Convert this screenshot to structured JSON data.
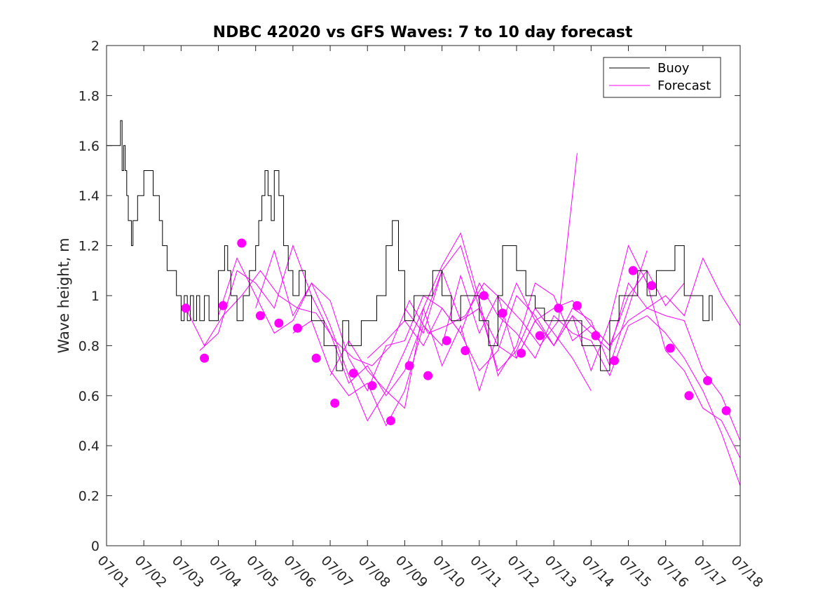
{
  "chart_data": {
    "type": "line",
    "title": "NDBC 42020 vs GFS Waves: 7 to 10 day forecast",
    "ylabel": "Wave height, m",
    "xlabel": "",
    "xlim": [
      "2017-07-01",
      "2017-07-18"
    ],
    "ylim": [
      0,
      2
    ],
    "yticks": [
      "0",
      "0.2",
      "0.4",
      "0.6",
      "0.8",
      "1",
      "1.2",
      "1.4",
      "1.6",
      "1.8",
      "2"
    ],
    "xticks": [
      "07/01",
      "07/02",
      "07/03",
      "07/04",
      "07/05",
      "07/06",
      "07/07",
      "07/08",
      "07/09",
      "07/10",
      "07/11",
      "07/12",
      "07/13",
      "07/14",
      "07/15",
      "07/16",
      "07/17",
      "07/18"
    ],
    "grid": false,
    "legend": {
      "position": "top-right",
      "entries": [
        "Buoy",
        "Forecast"
      ]
    },
    "colors": {
      "buoy": "#000000",
      "forecast": "#ff00ff"
    },
    "buoy": {
      "name": "Buoy",
      "x": [
        "07/01 00:00",
        "07/01 09:00",
        "07/01 10:00",
        "07/01 11:00",
        "07/01 12:00",
        "07/01 13:00",
        "07/01 14:00",
        "07/01 15:00",
        "07/01 16:00",
        "07/01 17:00",
        "07/01 18:00",
        "07/01 20:00",
        "07/01 21:00",
        "07/02 00:00",
        "07/02 06:00",
        "07/02 10:00",
        "07/02 12:00",
        "07/02 15:00",
        "07/02 18:00",
        "07/02 21:00",
        "07/03 00:00",
        "07/03 02:00",
        "07/03 04:00",
        "07/03 06:00",
        "07/03 08:00",
        "07/03 10:00",
        "07/03 12:00",
        "07/03 15:00",
        "07/03 18:00",
        "07/04 00:00",
        "07/04 04:00",
        "07/04 06:00",
        "07/04 08:00",
        "07/04 12:00",
        "07/04 16:00",
        "07/04 20:00",
        "07/05 00:00",
        "07/05 02:00",
        "07/05 04:00",
        "07/05 06:00",
        "07/05 08:00",
        "07/05 10:00",
        "07/05 12:00",
        "07/05 15:00",
        "07/05 18:00",
        "07/05 21:00",
        "07/06 00:00",
        "07/06 04:00",
        "07/06 08:00",
        "07/06 12:00",
        "07/06 16:00",
        "07/06 20:00",
        "07/07 00:00",
        "07/07 04:00",
        "07/07 08:00",
        "07/07 12:00",
        "07/07 16:00",
        "07/07 20:00",
        "07/08 00:00",
        "07/08 06:00",
        "07/08 12:00",
        "07/08 16:00",
        "07/08 20:00",
        "07/09 00:00",
        "07/09 06:00",
        "07/09 12:00",
        "07/09 18:00",
        "07/10 00:00",
        "07/10 06:00",
        "07/10 12:00",
        "07/10 18:00",
        "07/11 00:00",
        "07/11 06:00",
        "07/11 12:00",
        "07/11 15:00",
        "07/11 18:00",
        "07/12 00:00",
        "07/12 06:00",
        "07/12 12:00",
        "07/12 18:00",
        "07/13 00:00",
        "07/13 06:00",
        "07/13 12:00",
        "07/13 18:00",
        "07/14 00:00",
        "07/14 06:00",
        "07/14 12:00",
        "07/14 18:00",
        "07/15 00:00",
        "07/15 06:00",
        "07/15 12:00",
        "07/15 18:00",
        "07/16 00:00",
        "07/16 06:00",
        "07/16 12:00",
        "07/16 18:00",
        "07/17 00:00",
        "07/17 04:00",
        "07/17 06:00"
      ],
      "y": [
        1.6,
        1.7,
        1.5,
        1.6,
        1.5,
        1.4,
        1.3,
        1.3,
        1.2,
        1.3,
        1.3,
        1.4,
        1.4,
        1.5,
        1.4,
        1.3,
        1.2,
        1.1,
        1.1,
        1.0,
        0.9,
        1.0,
        0.9,
        1.0,
        0.9,
        1.0,
        0.9,
        1.0,
        0.9,
        1.1,
        1.2,
        1.1,
        1.0,
        0.9,
        1.0,
        1.1,
        1.2,
        1.3,
        1.4,
        1.5,
        1.4,
        1.3,
        1.5,
        1.4,
        1.2,
        1.1,
        1.0,
        1.1,
        1.0,
        0.9,
        0.9,
        0.8,
        0.8,
        0.7,
        0.9,
        0.8,
        0.8,
        0.9,
        0.9,
        1.0,
        1.2,
        1.3,
        1.1,
        0.9,
        1.0,
        1.0,
        1.1,
        1.0,
        0.9,
        1.0,
        1.0,
        0.9,
        0.8,
        1.0,
        1.2,
        1.2,
        1.1,
        1.0,
        0.95,
        0.9,
        0.9,
        0.9,
        0.9,
        0.8,
        0.8,
        0.7,
        0.9,
        1.0,
        1.0,
        1.1,
        1.0,
        1.1,
        1.1,
        1.2,
        1.0,
        1.0,
        0.9,
        1.0,
        0.9
      ]
    },
    "forecast_points": {
      "name": "Forecast",
      "x": [
        "07/03 03:00",
        "07/03 15:00",
        "07/04 03:00",
        "07/04 15:00",
        "07/05 03:00",
        "07/05 15:00",
        "07/06 03:00",
        "07/06 15:00",
        "07/07 03:00",
        "07/07 15:00",
        "07/08 03:00",
        "07/08 15:00",
        "07/09 03:00",
        "07/09 15:00",
        "07/10 03:00",
        "07/10 15:00",
        "07/11 03:00",
        "07/11 15:00",
        "07/12 03:00",
        "07/12 15:00",
        "07/13 03:00",
        "07/13 15:00",
        "07/14 03:00",
        "07/14 15:00",
        "07/15 03:00",
        "07/15 15:00",
        "07/16 03:00",
        "07/16 15:00",
        "07/17 03:00",
        "07/17 15:00"
      ],
      "y": [
        0.95,
        0.75,
        0.96,
        1.21,
        0.92,
        0.89,
        0.87,
        0.75,
        0.57,
        0.69,
        0.64,
        0.5,
        0.72,
        0.68,
        0.82,
        0.78,
        1.0,
        0.93,
        0.77,
        0.84,
        0.95,
        0.96,
        0.84,
        0.74,
        1.1,
        1.04,
        0.79,
        0.6,
        0.66,
        0.54
      ]
    },
    "forecast_runs": [
      {
        "x": [
          "07/03 03:00",
          "07/03 15:00",
          "07/04 03:00",
          "07/04 15:00",
          "07/05 03:00",
          "07/05 15:00",
          "07/06 03:00",
          "07/06 15:00",
          "07/07 03:00",
          "07/07 15:00",
          "07/08 03:00",
          "07/08 15:00",
          "07/09 03:00",
          "07/09 15:00",
          "07/10 03:00",
          "07/10 15:00",
          "07/11 03:00",
          "07/11 15:00",
          "07/12 03:00",
          "07/12 15:00",
          "07/13 03:00",
          "07/13 15:00"
        ],
        "y": [
          0.95,
          0.8,
          0.92,
          1.0,
          1.1,
          1.0,
          0.95,
          0.93,
          0.82,
          0.75,
          0.72,
          0.8,
          0.98,
          0.85,
          0.88,
          0.92,
          1.05,
          0.98,
          0.9,
          0.8,
          0.9,
          1.57
        ]
      },
      {
        "x": [
          "07/03 12:00",
          "07/04 00:00",
          "07/04 12:00",
          "07/05 00:00",
          "07/05 12:00",
          "07/06 00:00",
          "07/06 12:00",
          "07/07 00:00",
          "07/07 12:00",
          "07/08 00:00",
          "07/08 12:00",
          "07/09 00:00",
          "07/09 12:00",
          "07/10 00:00",
          "07/10 12:00",
          "07/11 00:00",
          "07/11 12:00",
          "07/12 00:00",
          "07/12 12:00",
          "07/13 00:00",
          "07/13 12:00",
          "07/14 00:00"
        ],
        "y": [
          0.78,
          0.85,
          1.1,
          1.05,
          0.95,
          1.2,
          1.0,
          0.85,
          0.65,
          0.72,
          0.6,
          0.7,
          0.9,
          1.1,
          1.2,
          0.95,
          0.7,
          0.78,
          0.95,
          0.85,
          0.75,
          0.62
        ]
      },
      {
        "x": [
          "07/04 00:00",
          "07/04 12:00",
          "07/05 00:00",
          "07/05 12:00",
          "07/06 00:00",
          "07/06 12:00",
          "07/07 00:00",
          "07/07 12:00",
          "07/08 00:00",
          "07/08 12:00",
          "07/09 00:00",
          "07/09 12:00",
          "07/10 00:00",
          "07/10 12:00",
          "07/11 00:00",
          "07/11 12:00",
          "07/12 00:00",
          "07/12 12:00",
          "07/13 00:00",
          "07/13 12:00",
          "07/14 00:00",
          "07/14 12:00",
          "07/15 00:00",
          "07/15 12:00"
        ],
        "y": [
          0.92,
          1.15,
          1.0,
          0.85,
          0.9,
          1.05,
          0.98,
          0.75,
          0.62,
          0.8,
          0.82,
          1.0,
          0.95,
          0.85,
          0.7,
          0.78,
          1.0,
          0.92,
          0.8,
          0.95,
          0.9,
          0.72,
          0.95,
          1.18
        ]
      },
      {
        "x": [
          "07/05 00:00",
          "07/05 12:00",
          "07/06 00:00",
          "07/06 12:00",
          "07/07 00:00",
          "07/07 12:00",
          "07/08 00:00",
          "07/08 12:00",
          "07/09 00:00",
          "07/09 12:00",
          "07/10 00:00",
          "07/10 12:00",
          "07/11 00:00",
          "07/11 12:00",
          "07/12 00:00",
          "07/12 12:00",
          "07/13 00:00",
          "07/13 12:00",
          "07/14 00:00",
          "07/14 12:00",
          "07/15 00:00",
          "07/15 12:00",
          "07/16 00:00",
          "07/16 12:00"
        ],
        "y": [
          0.95,
          1.18,
          0.92,
          1.05,
          0.88,
          0.68,
          0.5,
          0.62,
          0.55,
          0.95,
          1.12,
          1.25,
          0.98,
          0.68,
          0.8,
          1.05,
          1.0,
          0.82,
          0.88,
          0.8,
          1.0,
          1.1,
          0.96,
          1.05
        ]
      },
      {
        "x": [
          "07/06 00:00",
          "07/06 12:00",
          "07/07 00:00",
          "07/07 12:00",
          "07/08 00:00",
          "07/08 12:00",
          "07/09 00:00",
          "07/09 12:00",
          "07/10 00:00",
          "07/10 12:00",
          "07/11 00:00",
          "07/11 12:00",
          "07/12 00:00",
          "07/12 12:00",
          "07/13 00:00",
          "07/13 12:00",
          "07/14 00:00",
          "07/14 12:00",
          "07/15 00:00",
          "07/15 12:00",
          "07/16 00:00",
          "07/16 12:00",
          "07/17 00:00",
          "07/17 12:00",
          "07/18 00:00"
        ],
        "y": [
          0.85,
          0.9,
          0.7,
          0.6,
          0.65,
          0.48,
          0.62,
          0.88,
          0.8,
          1.08,
          0.85,
          1.0,
          0.75,
          0.9,
          0.8,
          0.92,
          0.85,
          0.78,
          1.05,
          0.95,
          0.92,
          0.9,
          0.7,
          0.6,
          0.42
        ]
      },
      {
        "x": [
          "07/07 00:00",
          "07/07 12:00",
          "07/08 00:00",
          "07/08 12:00",
          "07/09 00:00",
          "07/09 12:00",
          "07/10 00:00",
          "07/10 12:00",
          "07/11 00:00",
          "07/11 12:00",
          "07/12 00:00",
          "07/12 12:00",
          "07/13 00:00",
          "07/13 12:00",
          "07/14 00:00",
          "07/14 12:00",
          "07/15 00:00",
          "07/15 12:00",
          "07/16 00:00",
          "07/16 12:00",
          "07/17 00:00",
          "07/17 12:00",
          "07/18 00:00"
        ],
        "y": [
          0.68,
          0.82,
          0.7,
          0.62,
          0.78,
          0.95,
          0.72,
          0.88,
          0.62,
          0.85,
          1.05,
          0.9,
          0.8,
          0.92,
          0.7,
          0.9,
          1.2,
          1.05,
          0.78,
          0.7,
          0.55,
          0.5,
          0.35
        ]
      },
      {
        "x": [
          "07/08 00:00",
          "07/08 12:00",
          "07/09 00:00",
          "07/09 12:00",
          "07/10 00:00",
          "07/10 12:00",
          "07/11 00:00",
          "07/11 12:00",
          "07/12 00:00",
          "07/12 12:00",
          "07/13 00:00",
          "07/13 12:00",
          "07/14 00:00",
          "07/14 12:00",
          "07/15 00:00",
          "07/15 12:00",
          "07/16 00:00",
          "07/16 12:00",
          "07/17 00:00",
          "07/17 12:00",
          "07/18 00:00"
        ],
        "y": [
          0.75,
          0.82,
          0.9,
          0.8,
          0.95,
          0.85,
          1.05,
          0.92,
          0.85,
          0.75,
          0.92,
          0.85,
          0.82,
          0.68,
          0.88,
          0.92,
          0.85,
          0.75,
          0.62,
          0.45,
          0.24
        ]
      },
      {
        "x": [
          "07/09 00:00",
          "07/09 12:00",
          "07/10 00:00",
          "07/10 12:00",
          "07/11 00:00",
          "07/11 12:00",
          "07/12 00:00",
          "07/12 12:00",
          "07/13 00:00",
          "07/13 12:00",
          "07/14 00:00",
          "07/14 12:00",
          "07/15 00:00",
          "07/15 12:00",
          "07/16 00:00",
          "07/16 12:00",
          "07/17 00:00",
          "07/17 12:00",
          "07/18 00:00"
        ],
        "y": [
          0.95,
          0.85,
          1.1,
          0.9,
          0.95,
          0.8,
          0.75,
          0.9,
          0.95,
          0.98,
          0.88,
          0.8,
          0.9,
          0.95,
          1.0,
          0.92,
          1.15,
          1.0,
          0.88
        ]
      }
    ]
  }
}
